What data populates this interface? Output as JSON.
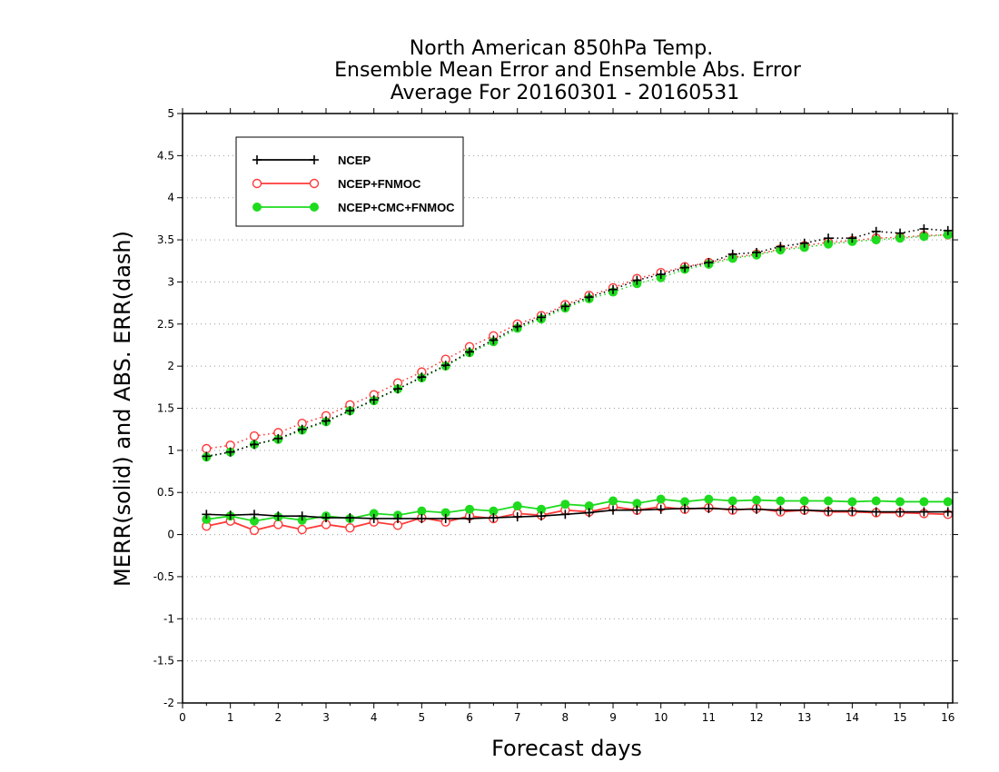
{
  "chart_data": {
    "type": "line",
    "title": [
      "North American 850hPa Temp.",
      "Ensemble Mean Error and Ensemble Abs. Error",
      "Average For 20160301 - 20160531"
    ],
    "xlabel": "Forecast days",
    "ylabel": "MERR(solid) and ABS. ERR(dash)",
    "xlim": [
      0,
      16.1
    ],
    "ylim": [
      -2,
      5
    ],
    "x_ticks": [
      0,
      1,
      2,
      3,
      4,
      5,
      6,
      7,
      8,
      9,
      10,
      11,
      12,
      13,
      14,
      15,
      16
    ],
    "y_ticks": [
      -2,
      -1.5,
      -1,
      -0.5,
      0,
      0.5,
      1,
      1.5,
      2,
      2.5,
      3,
      3.5,
      4,
      4.5,
      5
    ],
    "y_tick_labels": [
      "-2",
      "-1.5",
      "-1",
      "-0.5",
      "0",
      "0.5",
      "1",
      "1.5",
      "2",
      "2.5",
      "3",
      "3.5",
      "4",
      "4.5",
      "5"
    ],
    "grid": "horizontal dotted",
    "legend_position": "top-left",
    "x": [
      0.5,
      1,
      1.5,
      2,
      2.5,
      3,
      3.5,
      4,
      4.5,
      5,
      5.5,
      6,
      6.5,
      7,
      7.5,
      8,
      8.5,
      9,
      9.5,
      10,
      10.5,
      11,
      11.5,
      12,
      12.5,
      13,
      13.5,
      14,
      14.5,
      15,
      15.5,
      16
    ],
    "series": [
      {
        "name": "NCEP",
        "color": "#000000",
        "marker": "plus",
        "mean_error": [
          0.24,
          0.23,
          0.24,
          0.22,
          0.22,
          0.2,
          0.2,
          0.19,
          0.19,
          0.19,
          0.19,
          0.19,
          0.2,
          0.21,
          0.22,
          0.24,
          0.26,
          0.29,
          0.29,
          0.3,
          0.31,
          0.31,
          0.3,
          0.3,
          0.29,
          0.29,
          0.28,
          0.28,
          0.27,
          0.27,
          0.27,
          0.27
        ],
        "abs_error": [
          0.93,
          0.98,
          1.07,
          1.14,
          1.25,
          1.35,
          1.47,
          1.6,
          1.73,
          1.87,
          2.01,
          2.17,
          2.31,
          2.47,
          2.58,
          2.71,
          2.82,
          2.91,
          3.02,
          3.09,
          3.17,
          3.23,
          3.33,
          3.35,
          3.42,
          3.46,
          3.52,
          3.52,
          3.6,
          3.58,
          3.63,
          3.61
        ]
      },
      {
        "name": "NCEP+FNMOC",
        "color": "#ff3a3a",
        "marker": "open-circle",
        "mean_error": [
          0.1,
          0.16,
          0.05,
          0.12,
          0.06,
          0.12,
          0.08,
          0.15,
          0.11,
          0.2,
          0.15,
          0.22,
          0.19,
          0.25,
          0.23,
          0.29,
          0.27,
          0.33,
          0.29,
          0.33,
          0.3,
          0.32,
          0.29,
          0.31,
          0.27,
          0.29,
          0.27,
          0.27,
          0.26,
          0.26,
          0.25,
          0.24
        ],
        "abs_error": [
          1.02,
          1.06,
          1.17,
          1.21,
          1.32,
          1.41,
          1.54,
          1.66,
          1.8,
          1.93,
          2.08,
          2.23,
          2.36,
          2.5,
          2.6,
          2.73,
          2.84,
          2.93,
          3.04,
          3.11,
          3.18,
          3.23,
          3.29,
          3.33,
          3.39,
          3.43,
          3.47,
          3.49,
          3.52,
          3.53,
          3.55,
          3.56
        ]
      },
      {
        "name": "NCEP+CMC+FNMOC",
        "color": "#1edb1e",
        "marker": "filled-circle",
        "mean_error": [
          0.18,
          0.22,
          0.16,
          0.21,
          0.17,
          0.22,
          0.19,
          0.25,
          0.23,
          0.28,
          0.26,
          0.3,
          0.28,
          0.34,
          0.3,
          0.36,
          0.34,
          0.4,
          0.37,
          0.42,
          0.39,
          0.42,
          0.4,
          0.41,
          0.4,
          0.4,
          0.4,
          0.39,
          0.4,
          0.39,
          0.39,
          0.39
        ],
        "abs_error": [
          0.92,
          0.98,
          1.07,
          1.13,
          1.24,
          1.34,
          1.47,
          1.59,
          1.73,
          1.86,
          2.0,
          2.16,
          2.29,
          2.45,
          2.56,
          2.69,
          2.8,
          2.88,
          2.98,
          3.05,
          3.15,
          3.21,
          3.28,
          3.32,
          3.38,
          3.41,
          3.45,
          3.48,
          3.5,
          3.52,
          3.54,
          3.56
        ]
      }
    ]
  }
}
